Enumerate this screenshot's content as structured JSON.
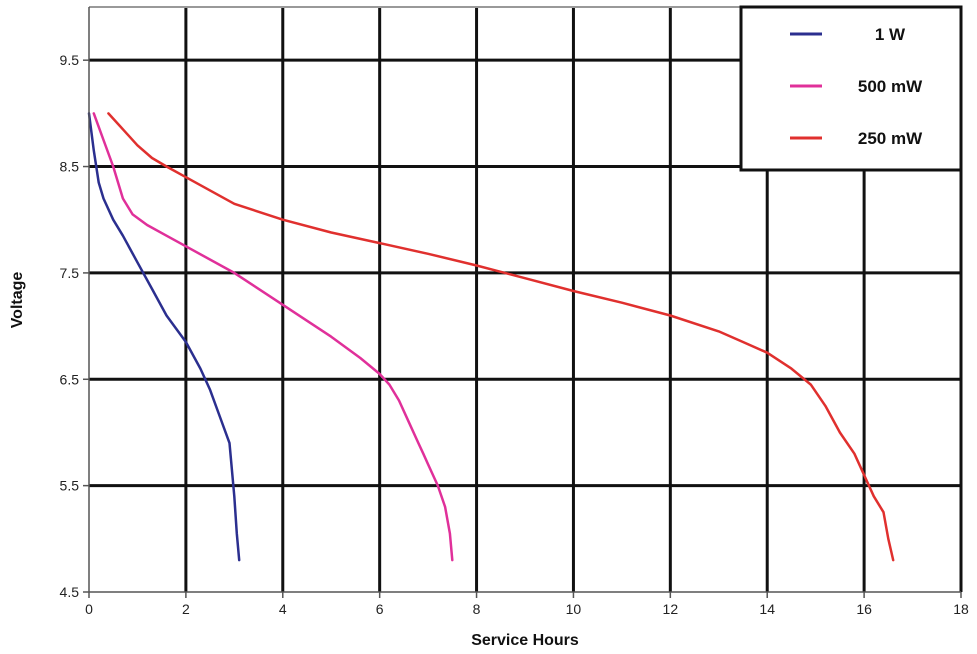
{
  "chart_data": {
    "type": "line",
    "title": "",
    "xlabel": "Service Hours",
    "ylabel": "Voltage",
    "xlim": [
      0,
      18
    ],
    "ylim": [
      4.5,
      10.0
    ],
    "x_ticks": [
      0,
      2,
      4,
      6,
      8,
      10,
      12,
      14,
      16,
      18
    ],
    "x_tick_labels": [
      "0",
      "2",
      "4",
      "6",
      "8",
      "10",
      "12",
      "14",
      "16",
      "18"
    ],
    "y_ticks": [
      4.5,
      5.5,
      6.5,
      7.5,
      8.5,
      9.5
    ],
    "y_tick_labels": [
      "4.5",
      "5.5",
      "6.5",
      "7.5",
      "8.5",
      "9.5"
    ],
    "grid": true,
    "legend_position": "top-right",
    "series": [
      {
        "name": "1 W",
        "color": "#2b2f8f",
        "x": [
          0.0,
          0.1,
          0.2,
          0.3,
          0.5,
          0.7,
          1.0,
          1.3,
          1.6,
          2.0,
          2.3,
          2.5,
          2.7,
          2.9,
          3.0,
          3.05,
          3.1
        ],
        "y": [
          9.0,
          8.65,
          8.35,
          8.2,
          8.0,
          7.85,
          7.6,
          7.35,
          7.1,
          6.85,
          6.6,
          6.4,
          6.15,
          5.9,
          5.4,
          5.05,
          4.8
        ]
      },
      {
        "name": "500 mW",
        "color": "#e0309a",
        "x": [
          0.1,
          0.3,
          0.5,
          0.7,
          0.9,
          1.2,
          1.6,
          2.0,
          3.0,
          4.0,
          5.0,
          5.6,
          6.0,
          6.2,
          6.4,
          6.6,
          6.8,
          6.9,
          7.0,
          7.2,
          7.35,
          7.45,
          7.5
        ],
        "y": [
          9.0,
          8.75,
          8.5,
          8.2,
          8.05,
          7.95,
          7.85,
          7.75,
          7.5,
          7.2,
          6.9,
          6.7,
          6.55,
          6.45,
          6.3,
          6.1,
          5.9,
          5.8,
          5.7,
          5.5,
          5.3,
          5.05,
          4.8
        ]
      },
      {
        "name": "250 mW",
        "color": "#e0302e",
        "x": [
          0.4,
          0.7,
          1.0,
          1.3,
          1.6,
          2.0,
          3.0,
          4.0,
          5.0,
          6.0,
          7.0,
          8.0,
          9.0,
          10.0,
          11.0,
          12.0,
          13.0,
          13.5,
          14.0,
          14.5,
          14.9,
          15.2,
          15.5,
          15.8,
          16.0,
          16.2,
          16.4,
          16.5,
          16.6
        ],
        "y": [
          9.0,
          8.85,
          8.7,
          8.58,
          8.5,
          8.4,
          8.15,
          8.0,
          7.88,
          7.78,
          7.68,
          7.57,
          7.45,
          7.33,
          7.22,
          7.1,
          6.95,
          6.85,
          6.75,
          6.6,
          6.45,
          6.25,
          6.0,
          5.8,
          5.6,
          5.4,
          5.25,
          5.0,
          4.8
        ]
      }
    ]
  }
}
